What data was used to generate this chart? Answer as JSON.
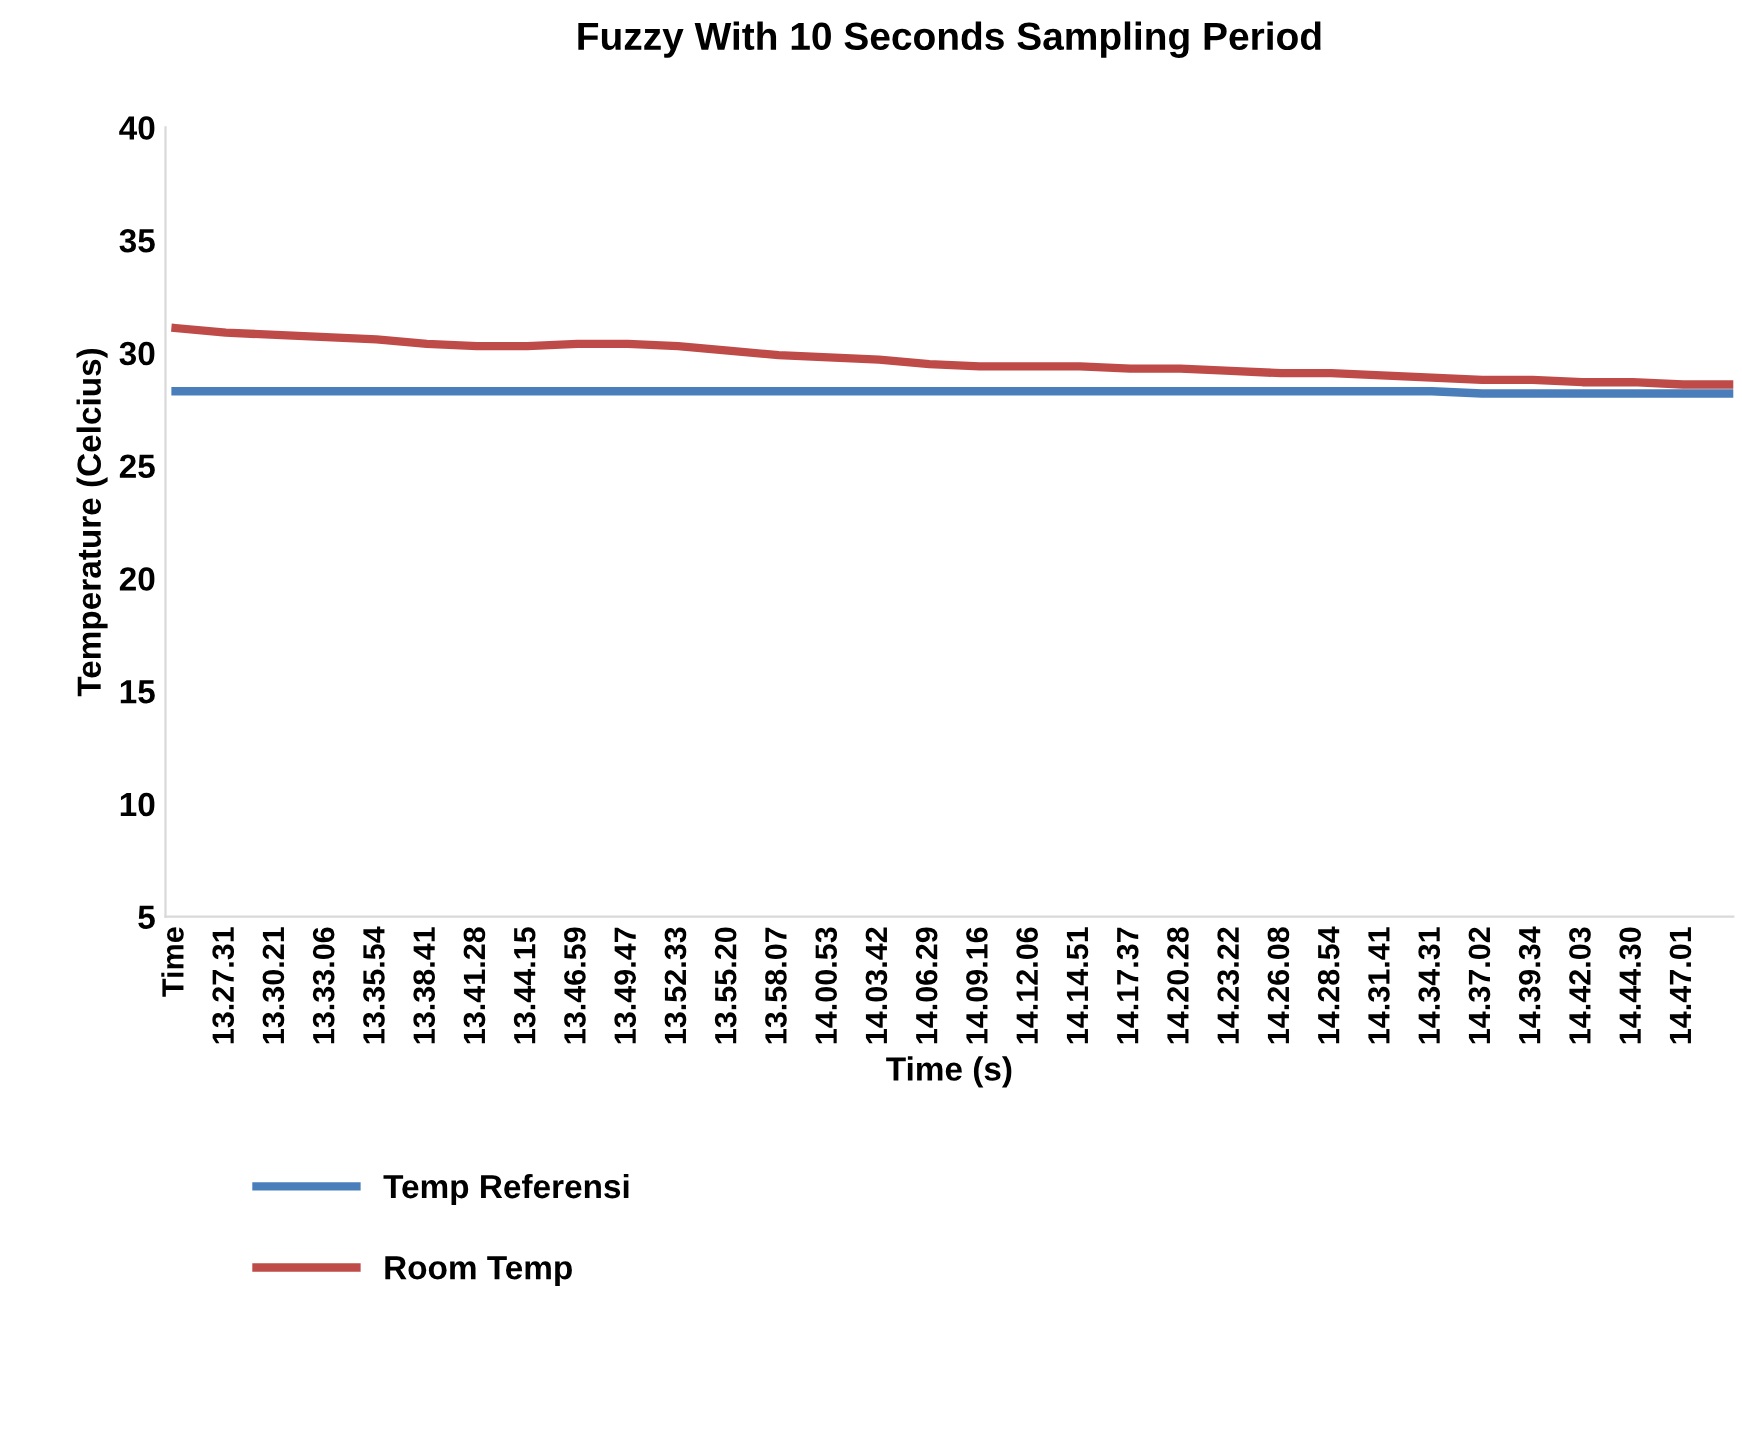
{
  "chart_data": {
    "type": "line",
    "title": "Fuzzy With 10 Seconds Sampling Period",
    "xlabel": "Time (s)",
    "ylabel": "Temperature (Celcius)",
    "categories": [
      "Time",
      "13.27.31",
      "13.30.21",
      "13.33.06",
      "13.35.54",
      "13.38.41",
      "13.41.28",
      "13.44.15",
      "13.46.59",
      "13.49.47",
      "13.52.33",
      "13.55.20",
      "13.58.07",
      "14.00.53",
      "14.03.42",
      "14.06.29",
      "14.09.16",
      "14.12.06",
      "14.14.51",
      "14.17.37",
      "14.20.28",
      "14.23.22",
      "14.26.08",
      "14.28.54",
      "14.31.41",
      "14.34.31",
      "14.37.02",
      "14.39.34",
      "14.42.03",
      "14.44.30",
      "14.47.01",
      null
    ],
    "series": [
      {
        "name": "Temp Referensi",
        "color": "#4a7ebb",
        "values": [
          28.3,
          28.3,
          28.3,
          28.3,
          28.3,
          28.3,
          28.3,
          28.3,
          28.3,
          28.3,
          28.3,
          28.3,
          28.3,
          28.3,
          28.3,
          28.3,
          28.3,
          28.3,
          28.3,
          28.3,
          28.3,
          28.3,
          28.3,
          28.3,
          28.3,
          28.3,
          28.2,
          28.2,
          28.2,
          28.2,
          28.2,
          28.2
        ]
      },
      {
        "name": "Room Temp",
        "color": "#be4b48",
        "values": [
          31.1,
          30.9,
          30.8,
          30.7,
          30.6,
          30.4,
          30.3,
          30.3,
          30.4,
          30.4,
          30.3,
          30.1,
          29.9,
          29.8,
          29.7,
          29.5,
          29.4,
          29.4,
          29.4,
          29.3,
          29.3,
          29.2,
          29.1,
          29.1,
          29.0,
          28.9,
          28.8,
          28.8,
          28.7,
          28.7,
          28.6,
          28.6
        ]
      }
    ],
    "ylim": [
      5,
      40
    ],
    "yticks": [
      5,
      10,
      15,
      20,
      25,
      30,
      35,
      40
    ],
    "grid": false,
    "legend": "bottom left",
    "marker": "none",
    "line_style": "solid"
  }
}
